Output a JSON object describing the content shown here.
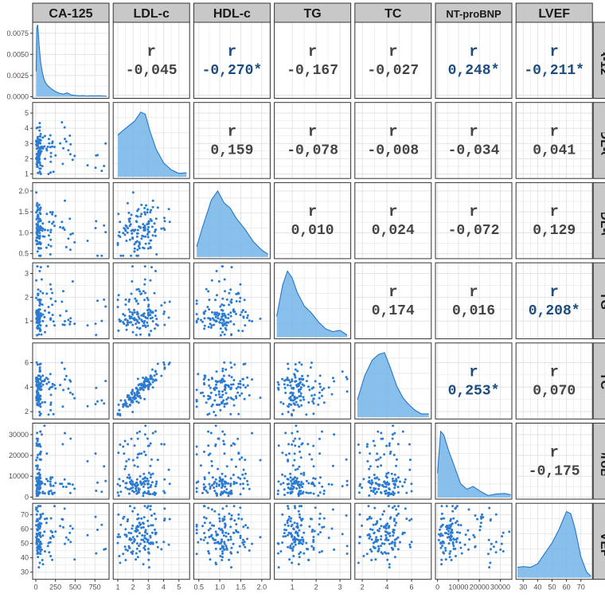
{
  "chart_data": {
    "type": "scatter-matrix",
    "variables": [
      "CA-125",
      "LDL-c",
      "HDL-c",
      "TG",
      "TC",
      "NT-proBNP",
      "LVEF"
    ],
    "correlation_label": "r",
    "correlations": [
      {
        "row": 0,
        "col": 1,
        "value": "-0,045",
        "significant": false
      },
      {
        "row": 0,
        "col": 2,
        "value": "-0,270*",
        "significant": true
      },
      {
        "row": 0,
        "col": 3,
        "value": "-0,167",
        "significant": false
      },
      {
        "row": 0,
        "col": 4,
        "value": "-0,027",
        "significant": false
      },
      {
        "row": 0,
        "col": 5,
        "value": "0,248*",
        "significant": true
      },
      {
        "row": 0,
        "col": 6,
        "value": "-0,211*",
        "significant": true
      },
      {
        "row": 1,
        "col": 2,
        "value": "0,159",
        "significant": false
      },
      {
        "row": 1,
        "col": 3,
        "value": "-0,078",
        "significant": false
      },
      {
        "row": 1,
        "col": 4,
        "value": "-0,008",
        "significant": false
      },
      {
        "row": 1,
        "col": 5,
        "value": "-0,034",
        "significant": false
      },
      {
        "row": 1,
        "col": 6,
        "value": "0,041",
        "significant": false
      },
      {
        "row": 2,
        "col": 3,
        "value": "0,010",
        "significant": false
      },
      {
        "row": 2,
        "col": 4,
        "value": "0,024",
        "significant": false
      },
      {
        "row": 2,
        "col": 5,
        "value": "-0,072",
        "significant": false
      },
      {
        "row": 2,
        "col": 6,
        "value": "0,129",
        "significant": false
      },
      {
        "row": 3,
        "col": 4,
        "value": "0,174",
        "significant": false
      },
      {
        "row": 3,
        "col": 5,
        "value": "0,016",
        "significant": false
      },
      {
        "row": 3,
        "col": 6,
        "value": "0,208*",
        "significant": true
      },
      {
        "row": 4,
        "col": 5,
        "value": "0,253*",
        "significant": true
      },
      {
        "row": 4,
        "col": 6,
        "value": "0,070",
        "significant": false
      },
      {
        "row": 5,
        "col": 6,
        "value": "-0,175",
        "significant": false
      }
    ],
    "x_ticks": [
      [
        "0",
        "250",
        "500",
        "750"
      ],
      [
        "1",
        "2",
        "3",
        "4",
        "5"
      ],
      [
        "0.5",
        "1.0",
        "1.5",
        "2.0"
      ],
      [
        "1",
        "2",
        "3"
      ],
      [
        "2",
        "4",
        "6"
      ],
      [
        "0",
        "10000",
        "20000",
        "30000"
      ],
      [
        "30",
        "40",
        "50",
        "60",
        "70"
      ]
    ],
    "x_tick_values": [
      [
        0,
        250,
        500,
        750
      ],
      [
        1,
        2,
        3,
        4,
        5
      ],
      [
        0.5,
        1.0,
        1.5,
        2.0
      ],
      [
        1,
        2,
        3
      ],
      [
        2,
        4,
        6
      ],
      [
        0,
        10000,
        20000,
        30000
      ],
      [
        30,
        40,
        50,
        60,
        70
      ]
    ],
    "y_ticks": [
      [
        "0.0000",
        "0.0025",
        "0.0050",
        "0.0075"
      ],
      [
        "1",
        "2",
        "3",
        "4",
        "5"
      ],
      [
        "0.5",
        "1.0",
        "1.5",
        "2.0"
      ],
      [
        "1",
        "2",
        "3"
      ],
      [
        "2",
        "4",
        "6"
      ],
      [
        "0",
        "10000",
        "20000",
        "30000"
      ],
      [
        "30",
        "40",
        "50",
        "60",
        "70"
      ]
    ],
    "y_tick_values": [
      [
        0,
        0.0025,
        0.005,
        0.0075
      ],
      [
        1,
        2,
        3,
        4,
        5
      ],
      [
        0.5,
        1.0,
        1.5,
        2.0
      ],
      [
        1,
        2,
        3
      ],
      [
        2,
        4,
        6
      ],
      [
        0,
        10000,
        20000,
        30000
      ],
      [
        30,
        40,
        50,
        60,
        70
      ]
    ],
    "ranges": [
      [
        -40,
        930
      ],
      [
        0.7,
        5.7
      ],
      [
        0.38,
        2.2
      ],
      [
        0.25,
        3.45
      ],
      [
        1.4,
        7.6
      ],
      [
        -1000,
        35500
      ],
      [
        25,
        78
      ]
    ],
    "density_ylim": [
      -0.0002,
      0.0088
    ],
    "ca125_density": {
      "x": [
        5,
        15,
        25,
        35,
        45,
        60,
        80,
        100,
        120,
        150,
        200,
        250,
        300,
        350,
        400,
        450,
        500,
        550,
        600,
        650,
        700,
        750,
        800,
        850,
        900
      ],
      "y": [
        0.003,
        0.0082,
        0.0085,
        0.0072,
        0.0058,
        0.0042,
        0.003,
        0.0022,
        0.0017,
        0.0013,
        0.0009,
        0.0006,
        0.0004,
        0.0003,
        0.00045,
        0.0002,
        0.00015,
        0.0001,
        0.00012,
        8e-05,
        0.0001,
        9e-05,
        0.0001,
        8e-05,
        5e-05
      ]
    },
    "density_curves": [
      {
        "variable": "LDL-c",
        "x": [
          1.0,
          1.3,
          1.7,
          2.1,
          2.5,
          2.8,
          3.1,
          3.5,
          4.0,
          4.5,
          5.0,
          5.5
        ],
        "y": [
          0.6,
          0.66,
          0.73,
          0.8,
          0.93,
          0.9,
          0.66,
          0.4,
          0.2,
          0.1,
          0.05,
          0.06
        ]
      },
      {
        "variable": "HDL-c",
        "x": [
          0.45,
          0.6,
          0.8,
          0.95,
          1.1,
          1.25,
          1.4,
          1.6,
          1.8,
          2.0,
          2.15
        ],
        "y": [
          0.15,
          0.45,
          0.82,
          0.95,
          0.78,
          0.7,
          0.55,
          0.4,
          0.22,
          0.1,
          0.04
        ]
      },
      {
        "variable": "TG",
        "x": [
          0.35,
          0.6,
          0.8,
          1.0,
          1.2,
          1.5,
          1.8,
          2.1,
          2.4,
          2.7,
          3.0,
          3.3
        ],
        "y": [
          0.3,
          0.75,
          0.95,
          0.85,
          0.65,
          0.45,
          0.35,
          0.22,
          0.12,
          0.08,
          0.1,
          0.03
        ]
      },
      {
        "variable": "TC",
        "x": [
          1.6,
          2.2,
          2.8,
          3.3,
          3.8,
          4.3,
          4.8,
          5.3,
          5.8,
          6.3,
          6.8,
          7.4
        ],
        "y": [
          0.25,
          0.6,
          0.82,
          0.9,
          0.93,
          0.7,
          0.45,
          0.28,
          0.18,
          0.1,
          0.05,
          0.05
        ]
      },
      {
        "variable": "NT-proBNP",
        "x": [
          0,
          1500,
          3000,
          5000,
          8000,
          11000,
          14000,
          17000,
          20000,
          24000,
          28000,
          32000,
          35000
        ],
        "y": [
          0.35,
          0.95,
          0.9,
          0.7,
          0.45,
          0.2,
          0.12,
          0.16,
          0.1,
          0.03,
          0.05,
          0.06,
          0.04
        ]
      },
      {
        "variable": "LVEF",
        "x": [
          26,
          30,
          35,
          40,
          45,
          50,
          55,
          60,
          63,
          66,
          70,
          74,
          77
        ],
        "y": [
          0.15,
          0.16,
          0.15,
          0.2,
          0.35,
          0.5,
          0.7,
          0.95,
          0.92,
          0.7,
          0.3,
          0.08,
          0.02
        ]
      }
    ],
    "grid": true,
    "colors": {
      "points": "#2b7bd1",
      "density_fill": "#73b4e8",
      "density_line": "#2677c8",
      "strip_bg": "#c8c8c8",
      "panel_border": "#333333",
      "grid": "#e3e3e3",
      "corr_plain": "#444444",
      "corr_significant": "#1c4d7e"
    }
  }
}
